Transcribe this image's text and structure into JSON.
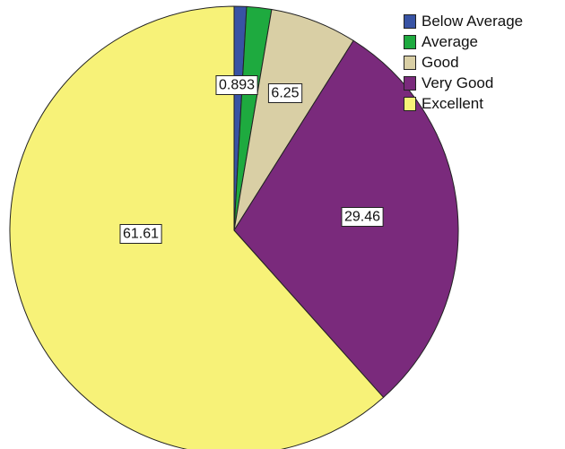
{
  "chart_data": {
    "type": "pie",
    "categories": [
      "Below Average",
      "Average",
      "Good",
      "Very Good",
      "Excellent"
    ],
    "values": [
      0.893,
      1.79,
      6.25,
      29.46,
      61.61
    ],
    "data_labels": [
      "0.893",
      "",
      "6.25",
      "29.46",
      "61.61"
    ],
    "colors": [
      "#3853a4",
      "#1eaa3f",
      "#d9cfa5",
      "#7a2a7c",
      "#f7f278"
    ],
    "start": "12 o'clock",
    "direction": "clockwise",
    "legend_position": "top-right"
  }
}
